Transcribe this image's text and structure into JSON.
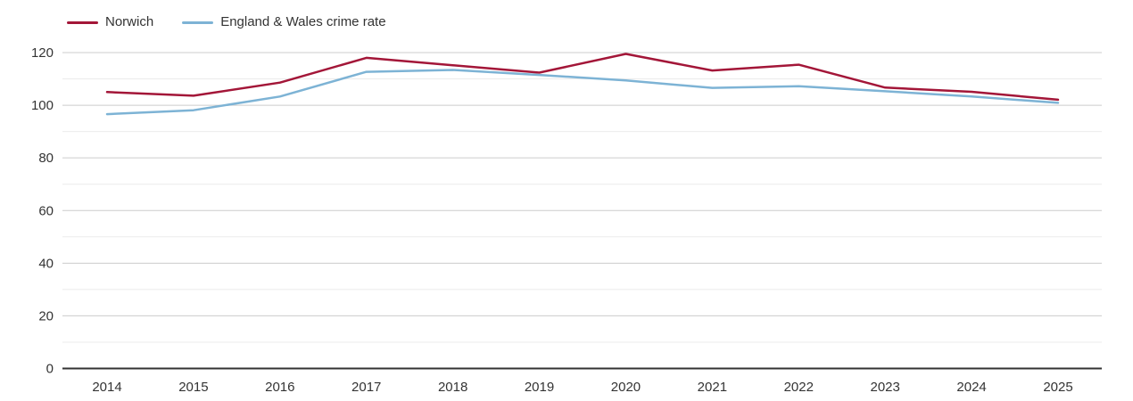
{
  "legend": {
    "items": [
      {
        "label": "Norwich",
        "color": "#a31638"
      },
      {
        "label": "England & Wales crime rate",
        "color": "#7db3d5"
      }
    ]
  },
  "chart_data": {
    "type": "line",
    "x": [
      2014,
      2015,
      2016,
      2017,
      2018,
      2019,
      2020,
      2021,
      2022,
      2023,
      2024,
      2025
    ],
    "series": [
      {
        "name": "Norwich",
        "color": "#a31638",
        "values": [
          105,
          103.6,
          108.6,
          118,
          115.2,
          112.4,
          119.5,
          113.2,
          115.4,
          106.7,
          105.1,
          102.1
        ]
      },
      {
        "name": "England & Wales crime rate",
        "color": "#7db3d5",
        "values": [
          96.6,
          98.1,
          103.3,
          112.7,
          113.4,
          111.5,
          109.4,
          106.6,
          107.2,
          105.3,
          103.3,
          100.9
        ]
      }
    ],
    "ylim": [
      0,
      120
    ],
    "y_major_step": 20,
    "y_minor_step": 10,
    "y_tick_labels": [
      "0",
      "20",
      "40",
      "60",
      "80",
      "100",
      "120"
    ],
    "grid": true,
    "legend_position": "top-left",
    "colors": {
      "major_grid": "#cccccc",
      "minor_grid": "#ebebeb",
      "axis_line": "#333333",
      "tick_text": "#333333"
    }
  }
}
